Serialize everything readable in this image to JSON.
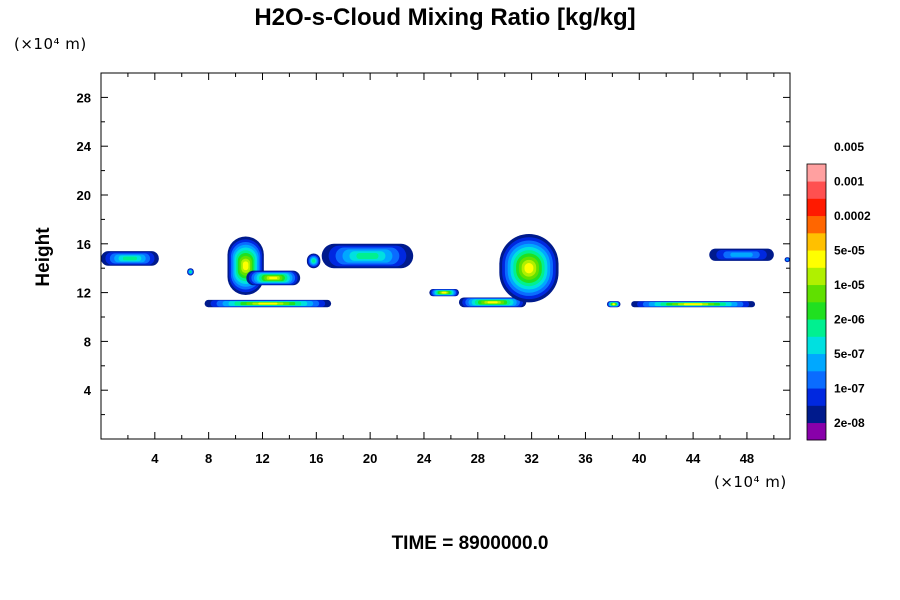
{
  "chart_data": {
    "type": "heatmap",
    "title": "H2O-s-Cloud Mixing Ratio [kg/kg]",
    "ylabel": "Height",
    "y_unit_label": "(×10⁴ m)",
    "x_unit_label": "(×10⁴ m)",
    "xlim": [
      0,
      51.2
    ],
    "ylim": [
      0,
      30
    ],
    "x_ticks": [
      "4",
      "8",
      "12",
      "16",
      "20",
      "24",
      "28",
      "32",
      "36",
      "40",
      "44",
      "48"
    ],
    "y_ticks": [
      "4",
      "8",
      "12",
      "16",
      "20",
      "24",
      "28"
    ],
    "time_label": "TIME = 8900000.0",
    "colorbar": {
      "levels": [
        "2e-08",
        "1e-07",
        "5e-07",
        "2e-06",
        "1e-05",
        "5e-05",
        "0.0002",
        "0.001",
        "0.005"
      ],
      "colors": [
        "#8800aa",
        "#001a8c",
        "#0028e0",
        "#0a6cff",
        "#00a8ff",
        "#00e0e0",
        "#00f090",
        "#20e020",
        "#60e000",
        "#b0f000",
        "#ffff00",
        "#ffc000",
        "#ff6600",
        "#ff1a00",
        "#ff5050",
        "#ffa0a0"
      ]
    },
    "cloud_regions": [
      {
        "x_range": [
          0,
          4.3
        ],
        "y_range": [
          14.2,
          15.4
        ],
        "max_level": "5e-07"
      },
      {
        "x_range": [
          6.4,
          6.9
        ],
        "y_range": [
          13.4,
          14.0
        ],
        "max_level": "5e-07"
      },
      {
        "x_range": [
          9.4,
          12.1
        ],
        "y_range": [
          11.8,
          16.6
        ],
        "max_level": "5e-05"
      },
      {
        "x_range": [
          10.8,
          14.8
        ],
        "y_range": [
          12.6,
          13.8
        ],
        "max_level": "5e-05"
      },
      {
        "x_range": [
          7.7,
          17.1
        ],
        "y_range": [
          10.8,
          11.4
        ],
        "max_level": "5e-05"
      },
      {
        "x_range": [
          15.3,
          16.3
        ],
        "y_range": [
          14.0,
          15.2
        ],
        "max_level": "5e-07"
      },
      {
        "x_range": [
          16.4,
          23.2
        ],
        "y_range": [
          14.0,
          16.0
        ],
        "max_level": "5e-07"
      },
      {
        "x_range": [
          24.4,
          26.6
        ],
        "y_range": [
          11.7,
          12.3
        ],
        "max_level": "5e-05"
      },
      {
        "x_range": [
          26.6,
          31.6
        ],
        "y_range": [
          10.8,
          11.6
        ],
        "max_level": "5e-05"
      },
      {
        "x_range": [
          29.6,
          34.0
        ],
        "y_range": [
          11.2,
          16.8
        ],
        "max_level": "5e-05"
      },
      {
        "x_range": [
          37.6,
          38.6
        ],
        "y_range": [
          10.8,
          11.3
        ],
        "max_level": "5e-05"
      },
      {
        "x_range": [
          39.4,
          48.6
        ],
        "y_range": [
          10.8,
          11.3
        ],
        "max_level": "5e-05"
      },
      {
        "x_range": [
          45.2,
          50.0
        ],
        "y_range": [
          14.6,
          15.6
        ],
        "max_level": "1e-07"
      },
      {
        "x_range": [
          50.8,
          51.2
        ],
        "y_range": [
          14.5,
          14.9
        ],
        "max_level": "1e-07"
      }
    ]
  }
}
